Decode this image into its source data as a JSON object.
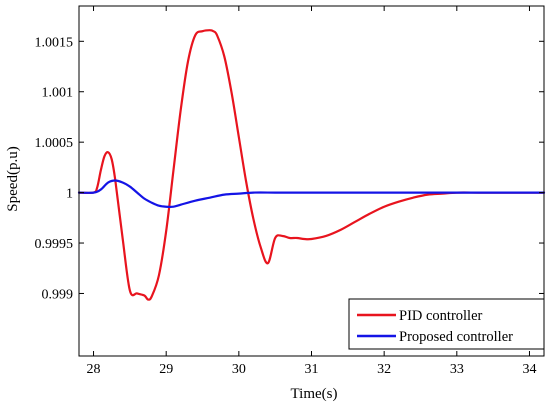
{
  "chart_data": {
    "type": "line",
    "xlabel": "Time(s)",
    "ylabel": "Speed(p.u)",
    "xlim": [
      27.8,
      34.2
    ],
    "ylim": [
      0.99838,
      1.00185
    ],
    "x_ticks": [
      28,
      29,
      30,
      31,
      32,
      33,
      34
    ],
    "x_tick_labels": [
      "28",
      "29",
      "30",
      "31",
      "32",
      "33",
      "34"
    ],
    "y_ticks": [
      0.999,
      0.9995,
      1,
      1.0005,
      1.001,
      1.0015
    ],
    "y_tick_labels": [
      "0.999",
      "0.9995",
      "1",
      "1.0005",
      "1.001",
      "1.0015"
    ],
    "grid": false,
    "legend_position": "bottom-right",
    "colors": {
      "pid": "#e8141e",
      "proposed": "#1414e6"
    },
    "series": [
      {
        "name": "PID controller",
        "color": "#e8141e",
        "x": [
          27.8,
          28.0,
          28.05,
          28.1,
          28.15,
          28.2,
          28.25,
          28.3,
          28.4,
          28.5,
          28.6,
          28.7,
          28.75,
          28.8,
          28.9,
          29.0,
          29.1,
          29.2,
          29.3,
          29.4,
          29.5,
          29.6,
          29.65,
          29.7,
          29.8,
          29.9,
          30.0,
          30.1,
          30.2,
          30.3,
          30.4,
          30.5,
          30.6,
          30.7,
          30.8,
          30.9,
          31.0,
          31.2,
          31.4,
          31.6,
          31.8,
          32.0,
          32.2,
          32.4,
          32.6,
          32.8,
          33.0,
          33.3,
          33.6,
          34.0,
          34.2
        ],
        "y": [
          1.0,
          1.0,
          1.00005,
          1.00022,
          1.00036,
          1.0004,
          1.00033,
          1.00012,
          0.99955,
          0.99903,
          0.999,
          0.99898,
          0.99894,
          0.99897,
          0.99918,
          0.99962,
          1.00022,
          1.00082,
          1.0013,
          1.00156,
          1.0016,
          1.00161,
          1.0016,
          1.00156,
          1.00135,
          1.00099,
          1.00055,
          1.00011,
          0.99974,
          0.99946,
          0.9993,
          0.99955,
          0.99957,
          0.99955,
          0.99955,
          0.99954,
          0.99954,
          0.99957,
          0.99963,
          0.99971,
          0.99979,
          0.99986,
          0.99991,
          0.99995,
          0.99998,
          0.99999,
          1.0,
          1.0,
          1.0,
          1.0,
          1.0
        ]
      },
      {
        "name": "Proposed controller",
        "color": "#1414e6",
        "x": [
          27.8,
          28.0,
          28.1,
          28.2,
          28.3,
          28.4,
          28.5,
          28.6,
          28.7,
          28.8,
          28.9,
          29.0,
          29.1,
          29.2,
          29.4,
          29.6,
          29.8,
          30.0,
          30.2,
          30.5,
          30.8,
          31.0,
          31.5,
          32.0,
          32.5,
          33.0,
          33.5,
          34.0,
          34.2
        ],
        "y": [
          1.0,
          1.0,
          1.00003,
          1.0001,
          1.00012,
          1.0001,
          1.00006,
          1.0,
          0.99994,
          0.9999,
          0.99987,
          0.99986,
          0.99986,
          0.99988,
          0.99992,
          0.99995,
          0.99998,
          0.99999,
          1.0,
          1.0,
          1.0,
          1.0,
          1.0,
          1.0,
          1.0,
          1.0,
          1.0,
          1.0,
          1.0
        ]
      }
    ]
  }
}
